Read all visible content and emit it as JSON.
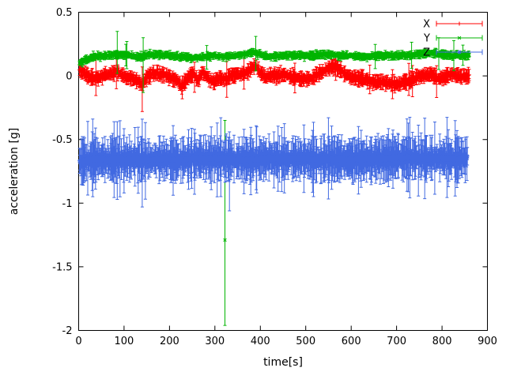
{
  "chart_data": {
    "type": "scatter",
    "style": "points-with-errorbars",
    "title": "",
    "xlabel": "time[s]",
    "ylabel": "acceleration [g]",
    "xlim": [
      0,
      900
    ],
    "ylim": [
      -2,
      0.5
    ],
    "grid": false,
    "background": "#ffffff",
    "border_color": "#000000",
    "xticks": [
      {
        "v": 0,
        "label": "0"
      },
      {
        "v": 100,
        "label": "100"
      },
      {
        "v": 200,
        "label": "200"
      },
      {
        "v": 300,
        "label": "300"
      },
      {
        "v": 400,
        "label": "400"
      },
      {
        "v": 500,
        "label": "500"
      },
      {
        "v": 600,
        "label": "600"
      },
      {
        "v": 700,
        "label": "700"
      },
      {
        "v": 800,
        "label": "800"
      },
      {
        "v": 900,
        "label": "900"
      }
    ],
    "yticks": [
      {
        "v": -2,
        "label": "-2"
      },
      {
        "v": -1.5,
        "label": "-1.5"
      },
      {
        "v": -1,
        "label": "-1"
      },
      {
        "v": -0.5,
        "label": "-0.5"
      },
      {
        "v": 0,
        "label": "0"
      },
      {
        "v": 0.5,
        "label": "0.5"
      }
    ],
    "legend": {
      "position": "top-right",
      "entries": [
        "X",
        "Y",
        "Z"
      ]
    },
    "series": [
      {
        "name": "X",
        "color": "#ff0000",
        "marker": "plus",
        "seed": 101,
        "t_start": 2,
        "t_end": 860,
        "step": 1,
        "noise": 0.016,
        "err": {
          "lo": 0.02,
          "hi": 0.065,
          "p_big": 0.015,
          "big_lo": 0.09,
          "big_hi": 0.15
        },
        "mean_anchors": [
          [
            0,
            0.05
          ],
          [
            10,
            0.03
          ],
          [
            25,
            -0.01
          ],
          [
            40,
            -0.02
          ],
          [
            55,
            0.0
          ],
          [
            70,
            0.02
          ],
          [
            85,
            0.03
          ],
          [
            100,
            0.0
          ],
          [
            115,
            -0.02
          ],
          [
            130,
            -0.04
          ],
          [
            140,
            -0.07
          ],
          [
            150,
            -0.01
          ],
          [
            165,
            0.02
          ],
          [
            185,
            0.01
          ],
          [
            200,
            -0.01
          ],
          [
            215,
            -0.03
          ],
          [
            228,
            -0.08
          ],
          [
            240,
            -0.02
          ],
          [
            252,
            0.02
          ],
          [
            262,
            -0.04
          ],
          [
            272,
            0.03
          ],
          [
            285,
            -0.02
          ],
          [
            298,
            -0.05
          ],
          [
            310,
            -0.02
          ],
          [
            322,
            -0.03
          ],
          [
            335,
            0.0
          ],
          [
            350,
            0.01
          ],
          [
            365,
            0.02
          ],
          [
            378,
            0.05
          ],
          [
            390,
            0.08
          ],
          [
            400,
            0.02
          ],
          [
            412,
            -0.01
          ],
          [
            430,
            0.0
          ],
          [
            450,
            0.01
          ],
          [
            470,
            -0.01
          ],
          [
            490,
            -0.02
          ],
          [
            510,
            -0.02
          ],
          [
            530,
            0.02
          ],
          [
            545,
            0.05
          ],
          [
            560,
            0.07
          ],
          [
            572,
            0.06
          ],
          [
            585,
            0.02
          ],
          [
            600,
            -0.01
          ],
          [
            620,
            -0.02
          ],
          [
            640,
            -0.04
          ],
          [
            660,
            -0.05
          ],
          [
            680,
            -0.05
          ],
          [
            700,
            -0.07
          ],
          [
            715,
            -0.05
          ],
          [
            730,
            -0.03
          ],
          [
            745,
            -0.01
          ],
          [
            760,
            0.0
          ],
          [
            775,
            0.02
          ],
          [
            790,
            -0.02
          ],
          [
            805,
            -0.01
          ],
          [
            820,
            0.01
          ],
          [
            840,
            0.0
          ],
          [
            860,
            -0.01
          ]
        ],
        "outliers": [
          {
            "t": 140,
            "v": -0.09,
            "lo": -0.28,
            "hi": 0.07
          },
          {
            "t": 228,
            "v": -0.09,
            "lo": -0.18,
            "hi": 0.0
          },
          {
            "t": 788,
            "v": -0.04,
            "lo": -0.17,
            "hi": 0.08
          }
        ]
      },
      {
        "name": "Y",
        "color": "#00b400",
        "marker": "cross",
        "seed": 202,
        "t_start": 2,
        "t_end": 860,
        "step": 1,
        "noise": 0.012,
        "err": {
          "lo": 0.01,
          "hi": 0.035,
          "p_big": 0.01,
          "big_lo": 0.06,
          "big_hi": 0.12
        },
        "mean_anchors": [
          [
            0,
            0.1
          ],
          [
            8,
            0.11
          ],
          [
            20,
            0.13
          ],
          [
            35,
            0.15
          ],
          [
            60,
            0.16
          ],
          [
            85,
            0.17
          ],
          [
            110,
            0.16
          ],
          [
            130,
            0.15
          ],
          [
            145,
            0.16
          ],
          [
            170,
            0.17
          ],
          [
            200,
            0.16
          ],
          [
            230,
            0.15
          ],
          [
            255,
            0.14
          ],
          [
            275,
            0.15
          ],
          [
            300,
            0.16
          ],
          [
            322,
            0.15
          ],
          [
            345,
            0.16
          ],
          [
            365,
            0.17
          ],
          [
            385,
            0.19
          ],
          [
            395,
            0.17
          ],
          [
            420,
            0.15
          ],
          [
            450,
            0.16
          ],
          [
            480,
            0.16
          ],
          [
            510,
            0.16
          ],
          [
            540,
            0.17
          ],
          [
            570,
            0.16
          ],
          [
            600,
            0.16
          ],
          [
            630,
            0.15
          ],
          [
            660,
            0.16
          ],
          [
            690,
            0.16
          ],
          [
            720,
            0.16
          ],
          [
            750,
            0.17
          ],
          [
            780,
            0.18
          ],
          [
            795,
            0.17
          ],
          [
            820,
            0.16
          ],
          [
            860,
            0.16
          ]
        ],
        "outliers": [
          {
            "t": 322,
            "v": -1.29,
            "lo": -1.96,
            "hi": -0.35
          },
          {
            "t": 85,
            "v": 0.17,
            "lo": 0.02,
            "hi": 0.35
          },
          {
            "t": 142,
            "v": 0.13,
            "lo": -0.13,
            "hi": 0.3
          },
          {
            "t": 390,
            "v": 0.18,
            "lo": 0.04,
            "hi": 0.31
          },
          {
            "t": 793,
            "v": 0.18,
            "lo": 0.05,
            "hi": 0.3
          }
        ]
      },
      {
        "name": "Z",
        "color": "#4169e1",
        "marker": "asterisk",
        "seed": 303,
        "t_start": 2,
        "t_end": 856,
        "step": 1,
        "noise": 0.022,
        "err": {
          "lo": 0.05,
          "hi": 0.19,
          "p_big": 0.03,
          "big_lo": 0.22,
          "big_hi": 0.32
        },
        "mean_anchors": [
          [
            0,
            -0.68
          ],
          [
            15,
            -0.67
          ],
          [
            30,
            -0.66
          ],
          [
            60,
            -0.655
          ],
          [
            90,
            -0.66
          ],
          [
            120,
            -0.655
          ],
          [
            150,
            -0.66
          ],
          [
            180,
            -0.655
          ],
          [
            210,
            -0.66
          ],
          [
            240,
            -0.655
          ],
          [
            270,
            -0.65
          ],
          [
            300,
            -0.645
          ],
          [
            330,
            -0.655
          ],
          [
            360,
            -0.66
          ],
          [
            390,
            -0.655
          ],
          [
            420,
            -0.65
          ],
          [
            450,
            -0.655
          ],
          [
            480,
            -0.65
          ],
          [
            510,
            -0.655
          ],
          [
            540,
            -0.66
          ],
          [
            570,
            -0.655
          ],
          [
            600,
            -0.66
          ],
          [
            630,
            -0.655
          ],
          [
            660,
            -0.65
          ],
          [
            690,
            -0.645
          ],
          [
            720,
            -0.64
          ],
          [
            750,
            -0.645
          ],
          [
            780,
            -0.65
          ],
          [
            810,
            -0.65
          ],
          [
            840,
            -0.648
          ],
          [
            856,
            -0.65
          ]
        ],
        "outliers": [
          {
            "t": 30,
            "v": -0.66,
            "lo": -0.9,
            "hi": -0.44
          },
          {
            "t": 85,
            "v": -0.66,
            "lo": -0.97,
            "hi": -0.36
          },
          {
            "t": 140,
            "v": -0.67,
            "lo": -1.03,
            "hi": -0.34
          },
          {
            "t": 255,
            "v": -0.66,
            "lo": -0.93,
            "hi": -0.42
          },
          {
            "t": 305,
            "v": -0.65,
            "lo": -0.95,
            "hi": -0.37
          },
          {
            "t": 332,
            "v": -0.67,
            "lo": -1.06,
            "hi": -0.44
          },
          {
            "t": 392,
            "v": -0.66,
            "lo": -0.92,
            "hi": -0.4
          },
          {
            "t": 430,
            "v": -0.65,
            "lo": -0.88,
            "hi": -0.44
          }
        ]
      }
    ]
  }
}
